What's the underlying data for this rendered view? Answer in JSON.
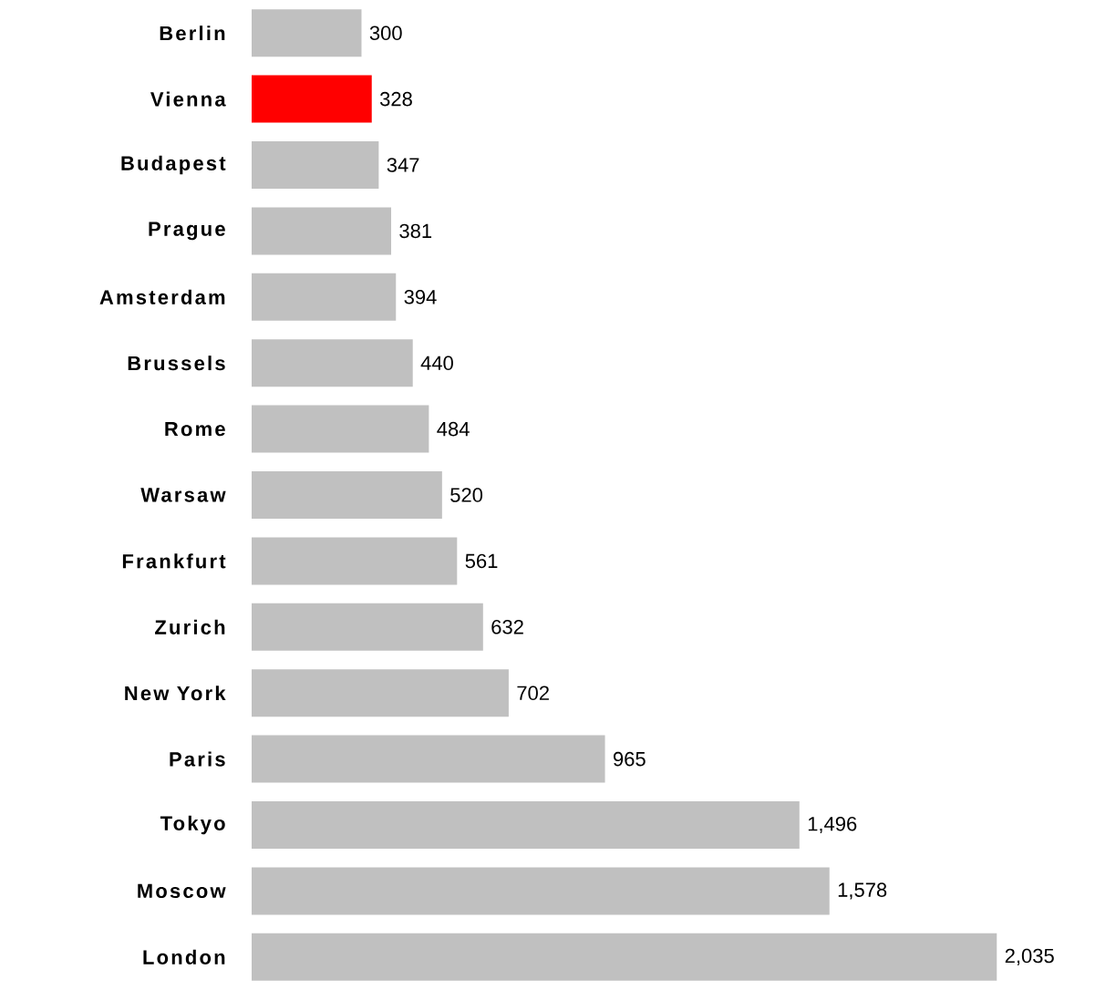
{
  "chart_data": {
    "type": "bar",
    "orientation": "horizontal",
    "categories": [
      "Berlin",
      "Vienna",
      "Budapest",
      "Prague",
      "Amsterdam",
      "Brussels",
      "Rome",
      "Warsaw",
      "Frankfurt",
      "Zurich",
      "New York",
      "Paris",
      "Tokyo",
      "Moscow",
      "London"
    ],
    "values": [
      300,
      328,
      347,
      381,
      394,
      440,
      484,
      520,
      561,
      632,
      702,
      965,
      1496,
      1578,
      2035
    ],
    "colors": [
      "#c0c0c0",
      "#ff0000",
      "#c0c0c0",
      "#c0c0c0",
      "#c0c0c0",
      "#c0c0c0",
      "#c0c0c0",
      "#c0c0c0",
      "#c0c0c0",
      "#c0c0c0",
      "#c0c0c0",
      "#c0c0c0",
      "#c0c0c0",
      "#c0c0c0",
      "#c0c0c0"
    ],
    "value_labels": [
      "300",
      "328",
      "347",
      "381",
      "394",
      "440",
      "484",
      "520",
      "561",
      "632",
      "702",
      "965",
      "1,496",
      "1,578",
      "2,035"
    ]
  }
}
